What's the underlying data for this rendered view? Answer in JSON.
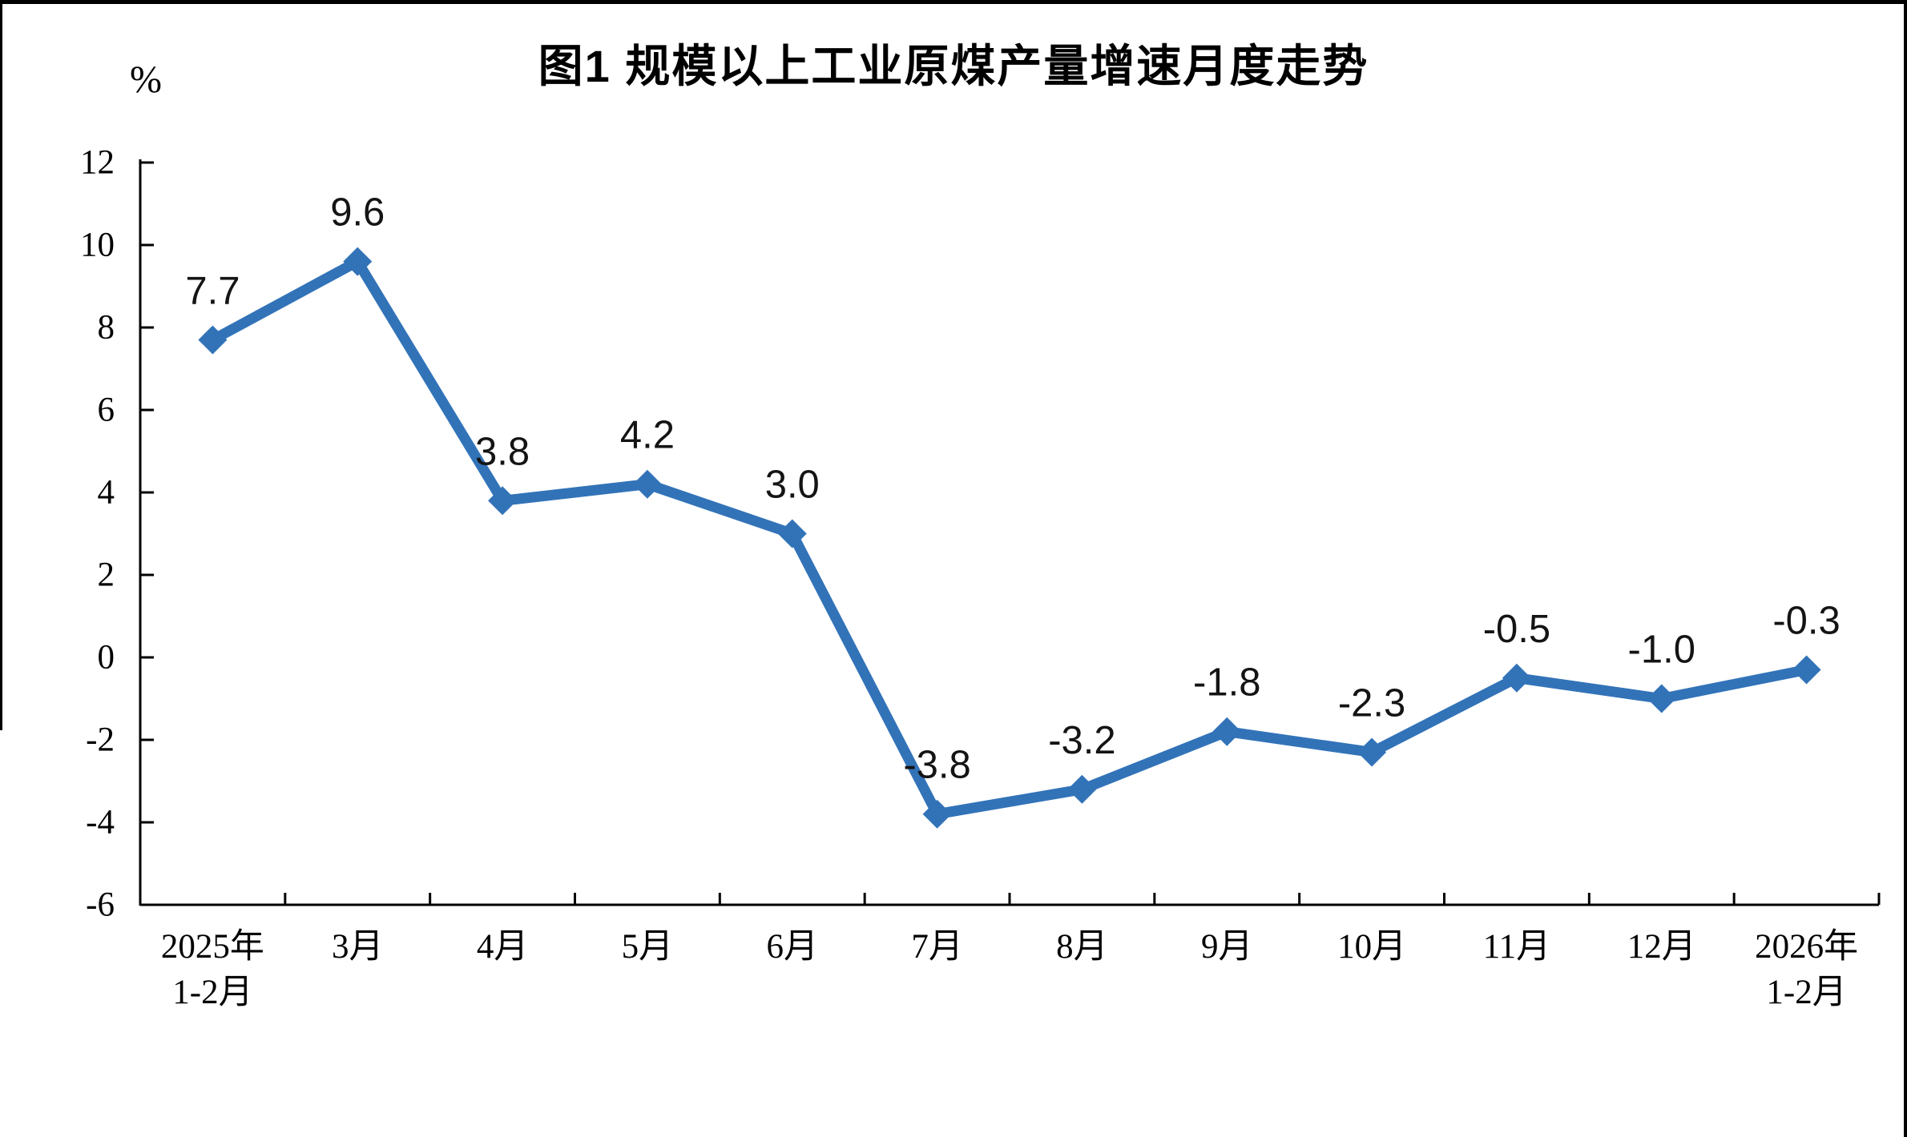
{
  "chart_data": {
    "type": "line",
    "title": "图1 规模以上工业原煤产量增速月度走势",
    "unit": "%",
    "categories": [
      "2025年\n1-2月",
      "3月",
      "4月",
      "5月",
      "6月",
      "7月",
      "8月",
      "9月",
      "10月",
      "11月",
      "12月",
      "2026年\n1-2月"
    ],
    "values": [
      7.7,
      9.6,
      3.8,
      4.2,
      3.0,
      -3.8,
      -3.2,
      -1.8,
      -2.3,
      -0.5,
      -1.0,
      -0.3
    ],
    "data_labels": [
      "7.7",
      "9.6",
      "3.8",
      "4.2",
      "3.0",
      "-3.8",
      "-3.2",
      "-1.8",
      "-2.3",
      "-0.5",
      "-1.0",
      "-0.3"
    ],
    "ylim": [
      -6,
      12
    ],
    "yticks": [
      12,
      10,
      8,
      6,
      4,
      2,
      0,
      -2,
      -4,
      -6
    ],
    "grid": false,
    "legend": false,
    "marker": "diamond",
    "series_name": "原煤产量增速",
    "colors": {
      "series": "#3273B8",
      "axis": "#000000",
      "text": "#000000",
      "frame_border": "#000000",
      "background": "#FFFFFF"
    }
  }
}
